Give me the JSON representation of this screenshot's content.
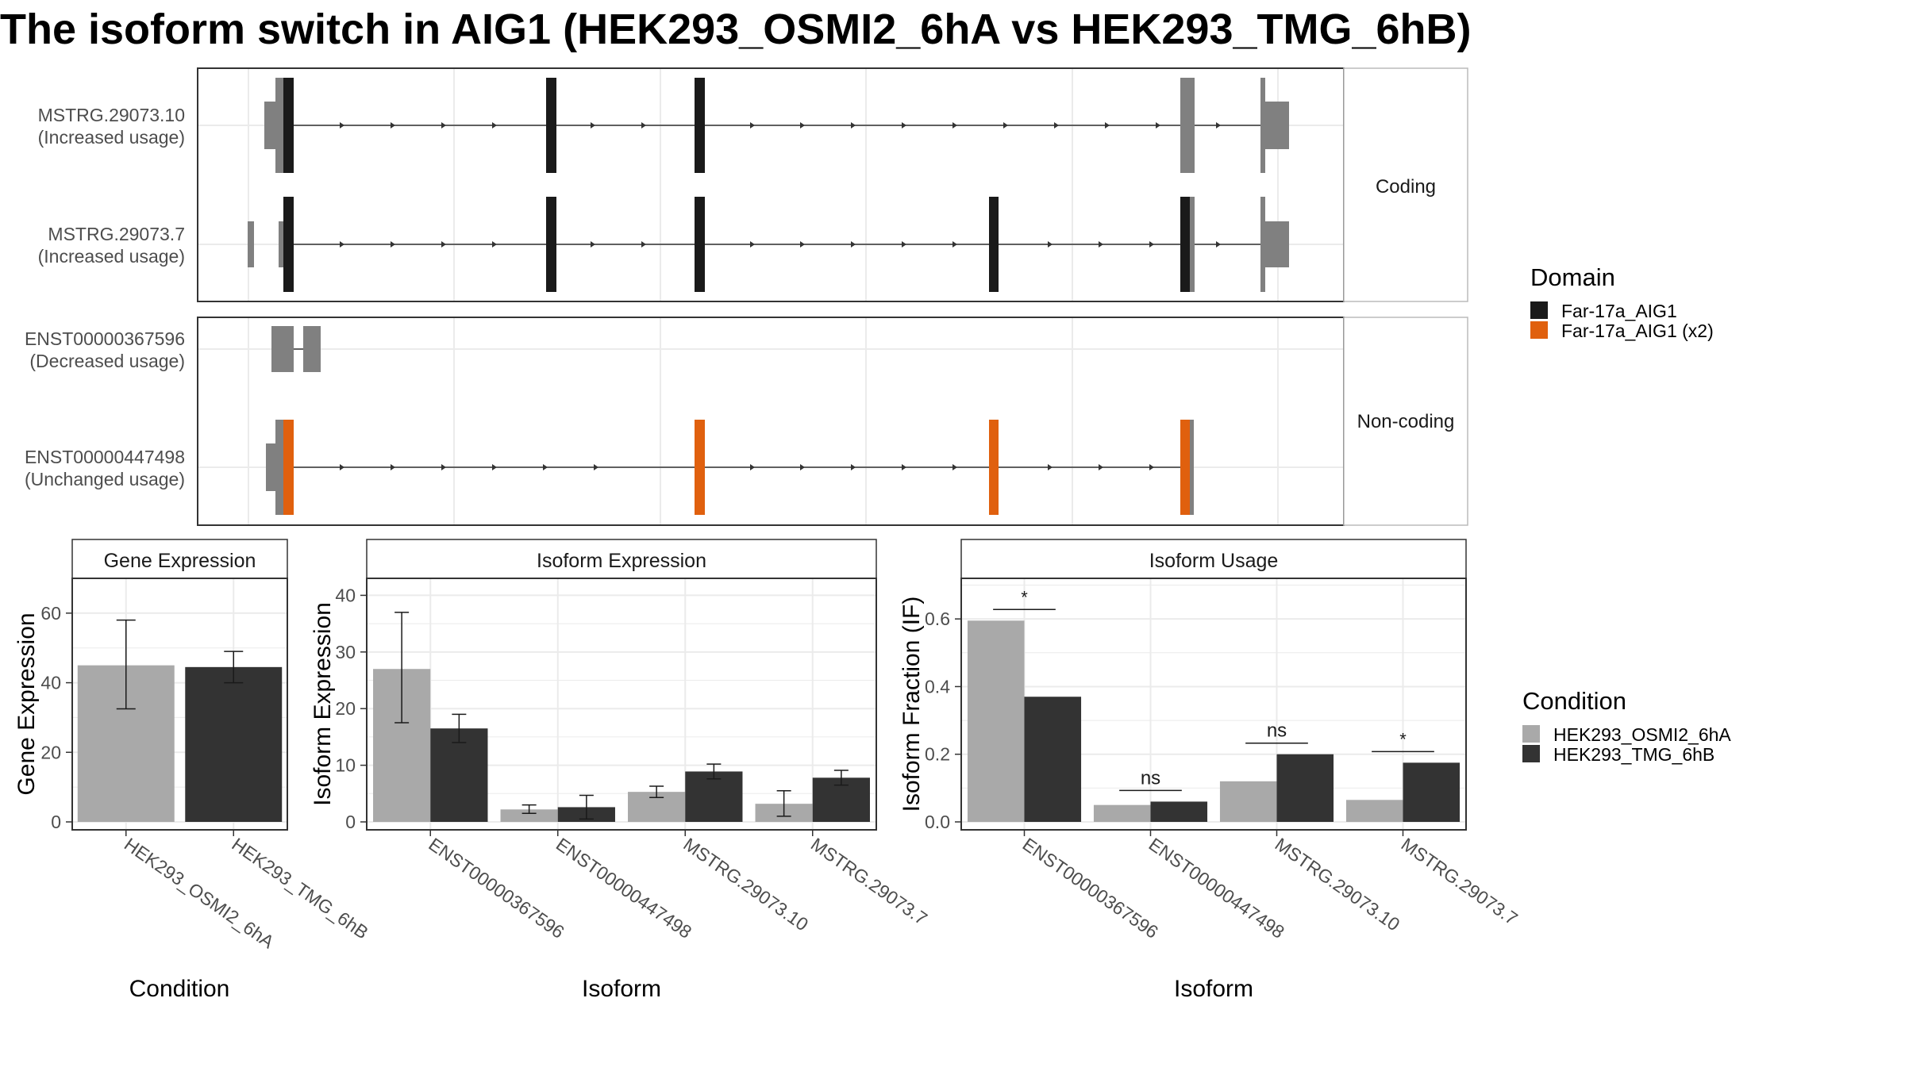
{
  "title": "The isoform switch in AIG1 (HEK293_OSMI2_6hA vs HEK293_TMG_6hB)",
  "transcripts": {
    "coding_label": "Coding",
    "noncoding_label": "Non-coding",
    "rows": [
      {
        "id": "MSTRG.29073.10",
        "usage": "(Increased usage)",
        "group": "Coding"
      },
      {
        "id": "MSTRG.29073.7",
        "usage": "(Increased usage)",
        "group": "Coding"
      },
      {
        "id": "ENST00000367596",
        "usage": "(Decreased usage)",
        "group": "Non-coding"
      },
      {
        "id": "ENST00000447498",
        "usage": "(Unchanged usage)",
        "group": "Non-coding"
      }
    ]
  },
  "legend_domain": {
    "title": "Domain",
    "items": [
      {
        "label": "Far-17a_AIG1",
        "color": "#1a1a1a"
      },
      {
        "label": "Far-17a_AIG1 (x2)",
        "color": "#e0600e"
      }
    ]
  },
  "legend_condition": {
    "title": "Condition",
    "items": [
      {
        "label": "HEK293_OSMI2_6hA",
        "color": "#a9a9a9"
      },
      {
        "label": "HEK293_TMG_6hB",
        "color": "#333333"
      }
    ]
  },
  "colors": {
    "utr": "#808080",
    "domain": "#1a1a1a",
    "domain_x2": "#e0600e",
    "cond_a": "#a9a9a9",
    "cond_b": "#333333"
  },
  "chart_data": [
    {
      "type": "bar",
      "panel_title": "Gene Expression",
      "xlabel": "Condition",
      "ylabel": "Gene Expression",
      "categories": [
        "HEK293_OSMI2_6hA",
        "HEK293_TMG_6hB"
      ],
      "values": [
        45.0,
        44.5
      ],
      "errors": [
        [
          32.5,
          58.0
        ],
        [
          40.0,
          49.0
        ]
      ],
      "ylim": [
        0,
        70
      ],
      "yticks": [
        0,
        20,
        40,
        60
      ]
    },
    {
      "type": "bar",
      "panel_title": "Isoform Expression",
      "xlabel": "Isoform",
      "ylabel": "Isoform Expression",
      "categories": [
        "ENST00000367596",
        "ENST00000447498",
        "MSTRG.29073.10",
        "MSTRG.29073.7"
      ],
      "series": [
        {
          "name": "HEK293_OSMI2_6hA",
          "values": [
            27.0,
            2.2,
            5.3,
            3.2
          ],
          "errors": [
            [
              17.5,
              37.0
            ],
            [
              1.5,
              3.0
            ],
            [
              4.3,
              6.3
            ],
            [
              1.0,
              5.5
            ]
          ]
        },
        {
          "name": "HEK293_TMG_6hB",
          "values": [
            16.5,
            2.6,
            8.9,
            7.8
          ],
          "errors": [
            [
              14.0,
              19.0
            ],
            [
              0.5,
              4.7
            ],
            [
              7.6,
              10.2
            ],
            [
              6.5,
              9.1
            ]
          ]
        }
      ],
      "ylim": [
        0,
        43
      ],
      "yticks": [
        0,
        10,
        20,
        30,
        40
      ]
    },
    {
      "type": "bar",
      "panel_title": "Isoform Usage",
      "xlabel": "Isoform",
      "ylabel": "Isoform Fraction (IF)",
      "categories": [
        "ENST00000367596",
        "ENST00000447498",
        "MSTRG.29073.10",
        "MSTRG.29073.7"
      ],
      "series": [
        {
          "name": "HEK293_OSMI2_6hA",
          "values": [
            0.595,
            0.05,
            0.12,
            0.065
          ]
        },
        {
          "name": "HEK293_TMG_6hB",
          "values": [
            0.37,
            0.06,
            0.2,
            0.175
          ]
        }
      ],
      "significance": [
        "*",
        "ns",
        "ns",
        "*"
      ],
      "ylim": [
        0,
        0.72
      ],
      "yticks": [
        0.0,
        0.2,
        0.4,
        0.6
      ],
      "ytick_labels": [
        "0.0",
        "0.2",
        "0.4",
        "0.6"
      ]
    }
  ]
}
